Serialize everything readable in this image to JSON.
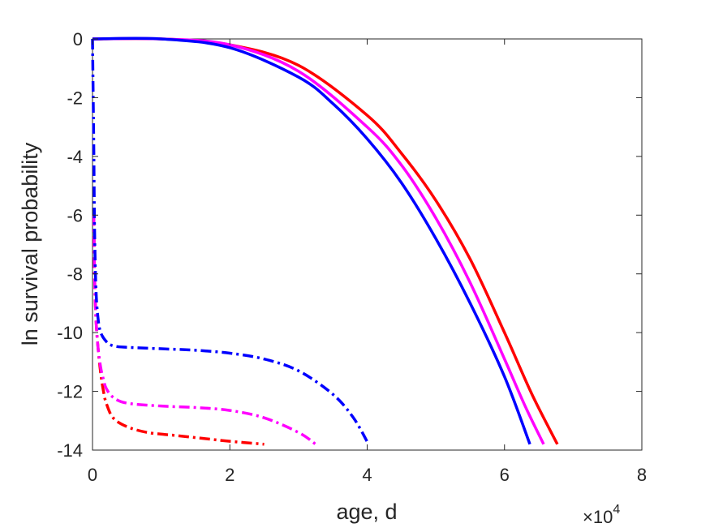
{
  "chart_data": {
    "type": "line",
    "xlabel": "age, d",
    "ylabel": "ln survival probability",
    "x_exponent": {
      "base": "×10",
      "power": "4"
    },
    "xlim": [
      0,
      8
    ],
    "ylim": [
      -14,
      0
    ],
    "x_ticks": [
      "0",
      "2",
      "4",
      "6",
      "8"
    ],
    "y_ticks": [
      "0",
      "-2",
      "-4",
      "-6",
      "-8",
      "-10",
      "-12",
      "-14"
    ],
    "grid": false,
    "legend": "none",
    "series": [
      {
        "color": "#ff0000",
        "style": "solid",
        "x": [
          0,
          1.0,
          2.0,
          3.0,
          4.0,
          4.5,
          5.0,
          5.5,
          6.0,
          6.4,
          6.77
        ],
        "y": [
          0,
          0,
          -0.2,
          -0.9,
          -2.6,
          -3.9,
          -5.5,
          -7.5,
          -10.0,
          -12.1,
          -13.8
        ]
      },
      {
        "color": "#ff00ff",
        "style": "solid",
        "x": [
          0,
          1.0,
          2.0,
          3.0,
          4.0,
          4.5,
          5.0,
          5.5,
          6.0,
          6.3,
          6.57
        ],
        "y": [
          0,
          0,
          -0.2,
          -1.1,
          -3.0,
          -4.3,
          -6.1,
          -8.3,
          -10.9,
          -12.5,
          -13.8
        ]
      },
      {
        "color": "#0000ff",
        "style": "solid",
        "x": [
          0,
          1.0,
          2.0,
          3.0,
          3.5,
          4.0,
          4.5,
          5.0,
          5.5,
          6.0,
          6.37
        ],
        "y": [
          0,
          0,
          -0.3,
          -1.3,
          -2.2,
          -3.4,
          -4.9,
          -6.8,
          -9.0,
          -11.5,
          -13.8
        ]
      },
      {
        "color": "#ff0000",
        "style": "dashdot",
        "x": [
          0.02,
          0.03,
          0.05,
          0.08,
          0.12,
          0.16,
          0.2,
          0.3,
          0.5,
          0.8,
          1.2,
          1.6,
          2.0,
          2.5
        ],
        "y": [
          -6.0,
          -8.0,
          -9.5,
          -10.5,
          -11.4,
          -12.0,
          -12.4,
          -12.9,
          -13.2,
          -13.4,
          -13.5,
          -13.6,
          -13.7,
          -13.8
        ]
      },
      {
        "color": "#ff00ff",
        "style": "dashdot",
        "x": [
          0.02,
          0.03,
          0.05,
          0.08,
          0.12,
          0.16,
          0.2,
          0.3,
          0.5,
          1.0,
          1.5,
          2.0,
          2.5,
          3.0,
          3.25
        ],
        "y": [
          -6.0,
          -8.0,
          -9.5,
          -10.5,
          -11.2,
          -11.6,
          -11.9,
          -12.2,
          -12.4,
          -12.5,
          -12.55,
          -12.65,
          -12.9,
          -13.4,
          -13.8
        ]
      },
      {
        "color": "#0000ff",
        "style": "dashdot",
        "x": [
          0.0,
          0.01,
          0.02,
          0.03,
          0.05,
          0.08,
          0.12,
          0.2,
          0.3,
          0.5,
          1.0,
          1.5,
          2.0,
          2.5,
          3.0,
          3.5,
          3.8,
          4.02
        ],
        "y": [
          0,
          -2.0,
          -4.0,
          -6.5,
          -8.5,
          -9.5,
          -10.0,
          -10.3,
          -10.45,
          -10.5,
          -10.55,
          -10.6,
          -10.7,
          -10.9,
          -11.3,
          -12.1,
          -12.9,
          -13.8
        ]
      }
    ]
  }
}
